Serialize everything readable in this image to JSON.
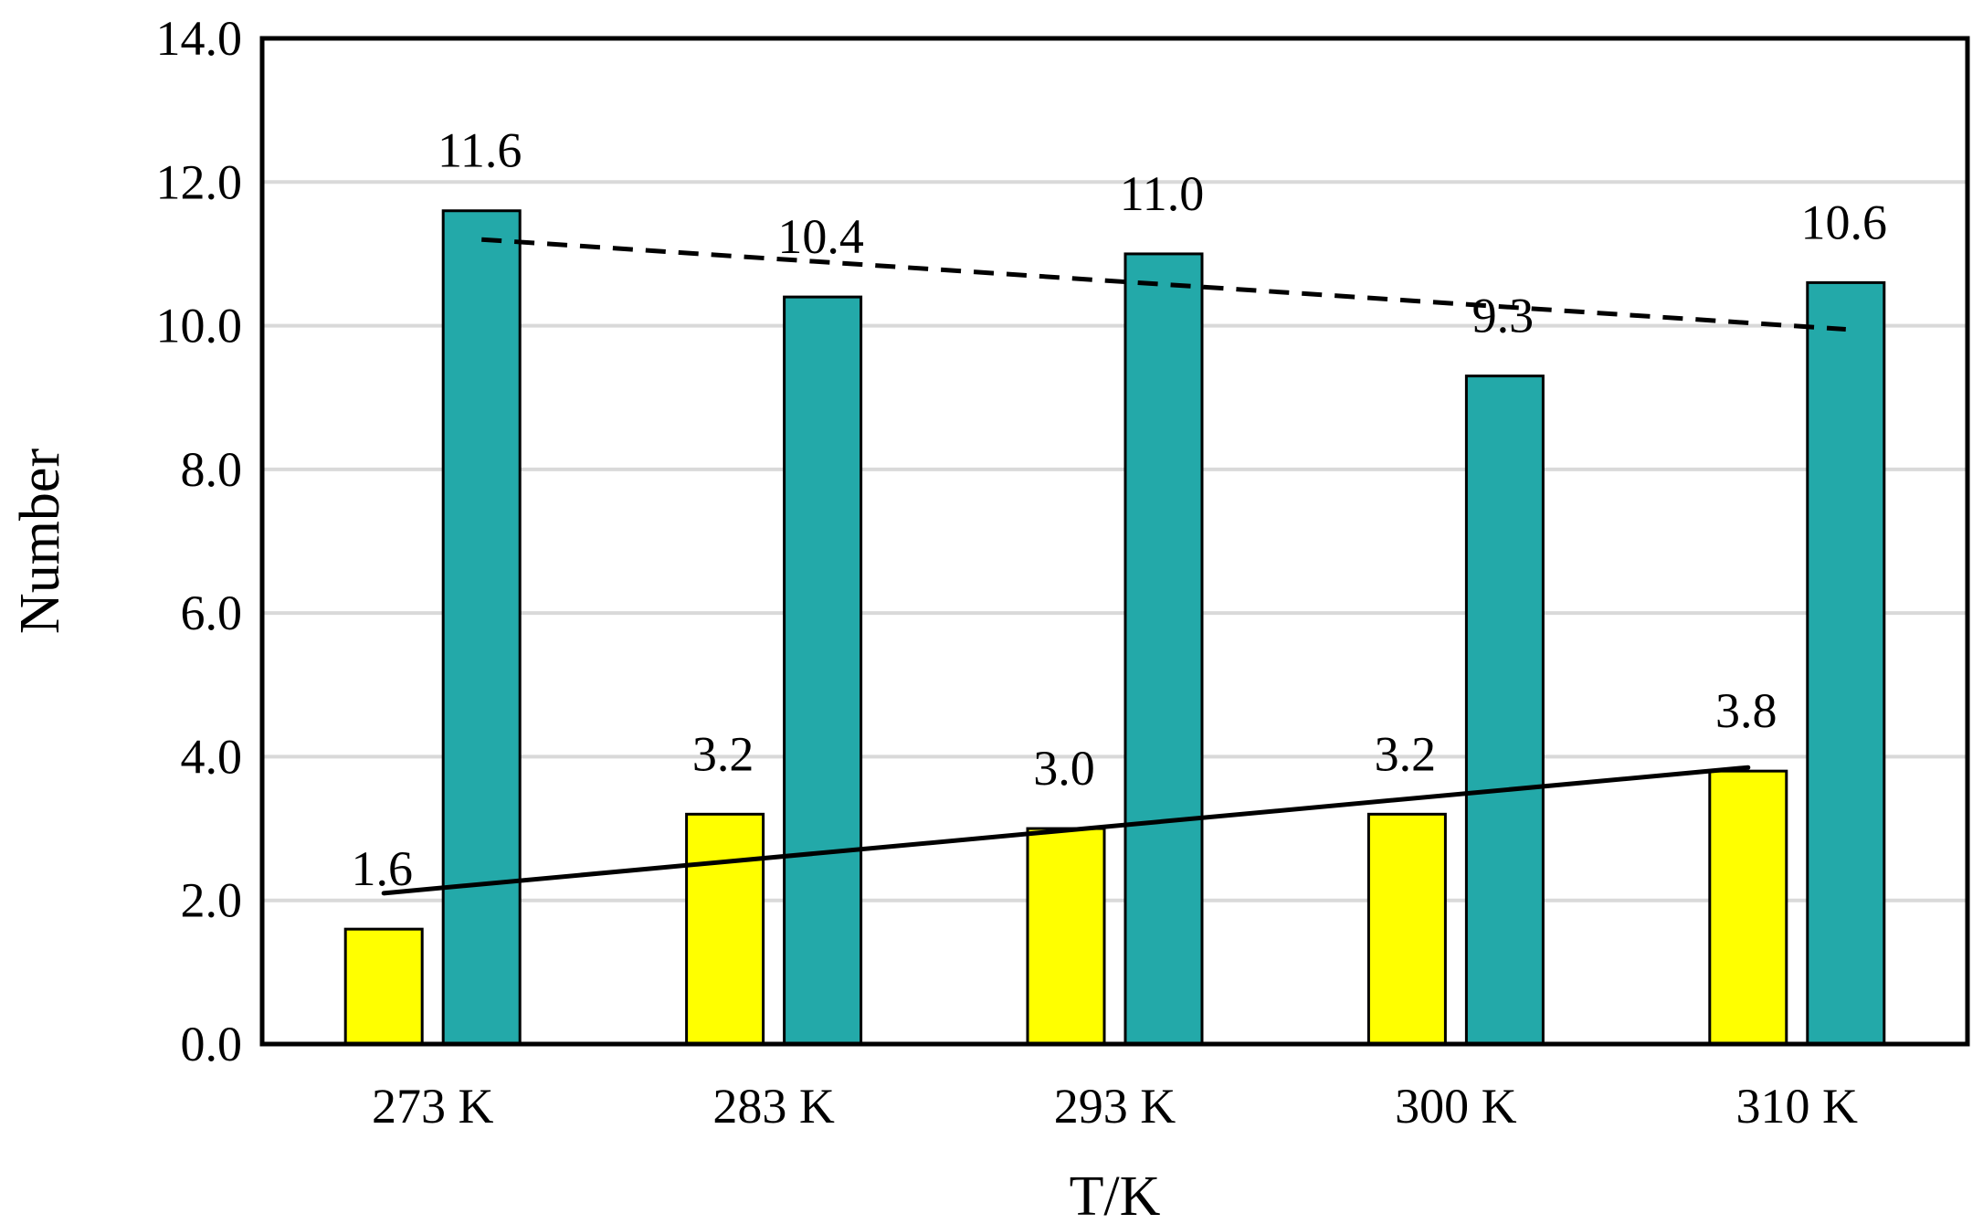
{
  "chart_data": {
    "type": "bar",
    "title": "",
    "xlabel": "T/K",
    "ylabel": "Number",
    "categories": [
      "273 K",
      "283 K",
      "293 K",
      "300 K",
      "310 K"
    ],
    "series": [
      {
        "values": [
          1.6,
          3.2,
          3.0,
          3.2,
          3.8
        ],
        "color": "#FFFF00",
        "labels": [
          "1.6",
          "3.2",
          "3.0",
          "3.2",
          "3.8"
        ]
      },
      {
        "values": [
          11.6,
          10.4,
          11.0,
          9.3,
          10.6
        ],
        "color": "#23A9A9",
        "labels": [
          "11.6",
          "10.4",
          "11.0",
          "9.3",
          "10.6"
        ]
      }
    ],
    "trendlines": [
      {
        "series_index": 0,
        "style": "solid",
        "start": 2.1,
        "end": 3.85
      },
      {
        "series_index": 1,
        "style": "dashed",
        "start": 11.2,
        "end": 9.95
      }
    ],
    "ylim": [
      0,
      14
    ],
    "yticks": [
      "0.0",
      "2.0",
      "4.0",
      "6.0",
      "8.0",
      "10.0",
      "12.0",
      "14.0"
    ],
    "grid": true,
    "gridline_color": "#D9D9D9",
    "legend": "none"
  }
}
